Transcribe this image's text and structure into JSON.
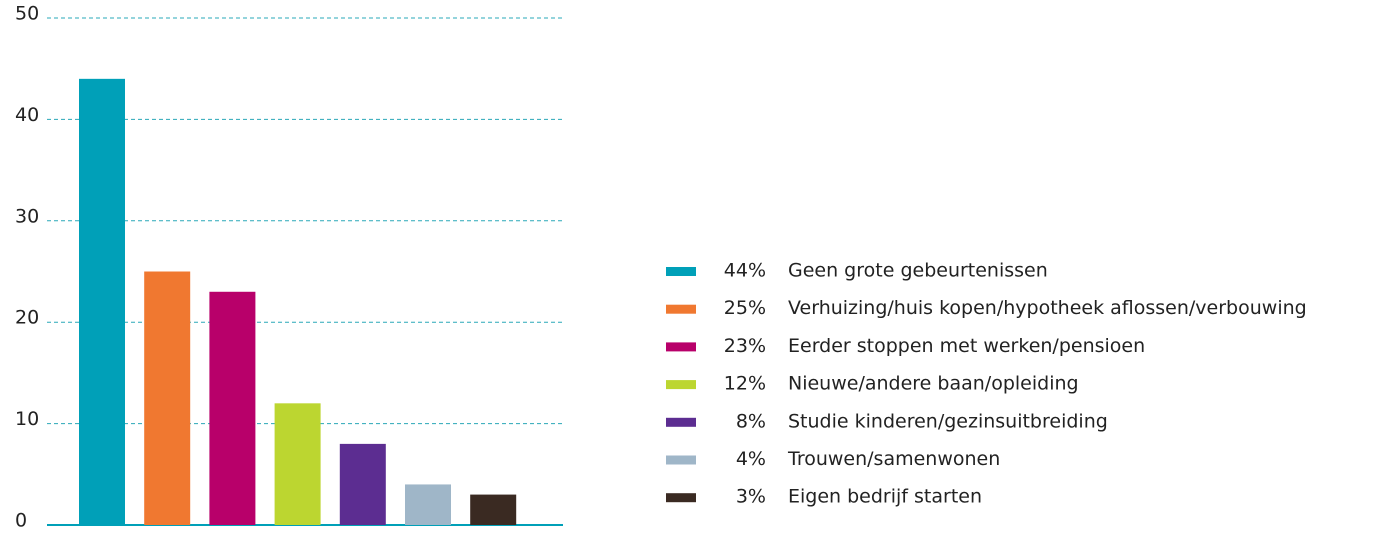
{
  "chart_data": {
    "type": "bar",
    "categories": [
      "Geen grote gebeurtenissen",
      "Verhuizing/huis kopen/hypotheek aflossen/verbouwing",
      "Eerder stoppen met werken/pensioen",
      "Nieuwe/andere baan/opleiding",
      "Studie kinderen/gezinsuitbreiding",
      "Trouwen/samenwonen",
      "Eigen bedrijf starten"
    ],
    "values": [
      44,
      25,
      23,
      12,
      8,
      4,
      3
    ],
    "value_labels": [
      "44%",
      "25%",
      "23%",
      "12%",
      "8%",
      "4%",
      "3%"
    ],
    "colors": [
      "#00a0b8",
      "#f07830",
      "#b8006a",
      "#bcd630",
      "#5c2d91",
      "#9fb6c8",
      "#3a2a22"
    ],
    "ylim": [
      0,
      50
    ],
    "yticks": [
      0,
      10,
      20,
      30,
      40,
      50
    ],
    "grid": true,
    "legend": "right"
  }
}
